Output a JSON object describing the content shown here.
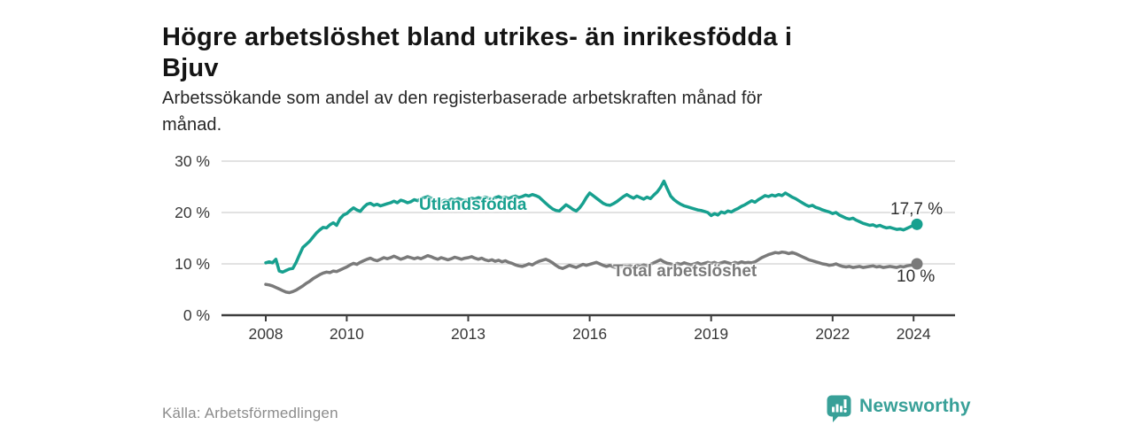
{
  "header": {
    "title_line1": "Högre arbetslöshet bland utrikes- än inrikesfödda i",
    "title_line2": "Bjuv",
    "subtitle_line1": "Arbetssökande som andel av den registerbaserade arbetskraften månad för",
    "subtitle_line2": "månad."
  },
  "footer": {
    "source": "Källa: Arbetsförmedlingen",
    "logo_text": "Newsworthy",
    "logo_icon": "bar-chart-speech-bubble-icon"
  },
  "colors": {
    "foreign_born_line": "#17a08f",
    "total_line": "#7a7a7a",
    "grid": "#d9d9d9",
    "axis": "#3d3d3d",
    "tick_text": "#383838",
    "annotation_text": "#2e2e2e",
    "source_text": "#8c8c8c",
    "logo_teal": "#38a098"
  },
  "chart_data": {
    "type": "line",
    "title": "Högre arbetslöshet bland utrikes- än inrikesfödda i Bjuv",
    "subtitle": "Arbetssökande som andel av den registerbaserade arbetskraften månad för månad.",
    "x_unit": "month",
    "x_start_year": 2008,
    "x_end": "2024-02",
    "x_ticks": [
      2008,
      2010,
      2013,
      2016,
      2019,
      2022,
      2024
    ],
    "x_tick_labels": [
      "2008",
      "2010",
      "2013",
      "2016",
      "2019",
      "2022",
      "2024"
    ],
    "y_ticks": [
      0,
      10,
      20,
      30
    ],
    "y_tick_labels": [
      "0 %",
      "10 %",
      "20 %",
      "30 %"
    ],
    "ylim": [
      0,
      30
    ],
    "grid": "horizontal",
    "legend_position": "inline-labels",
    "series": [
      {
        "name": "Utlandsfödda",
        "color": "#17a08f",
        "end_label": "17,7 %",
        "end_value": 17.7,
        "values": [
          10.2,
          10.4,
          10.2,
          10.9,
          8.6,
          8.4,
          8.7,
          9.0,
          9.1,
          10.3,
          11.8,
          13.2,
          13.8,
          14.4,
          15.2,
          16.0,
          16.6,
          17.1,
          17.0,
          17.6,
          18.0,
          17.5,
          18.8,
          19.5,
          19.8,
          20.4,
          20.9,
          20.5,
          20.2,
          21.0,
          21.6,
          21.8,
          21.4,
          21.6,
          21.3,
          21.5,
          21.7,
          21.9,
          22.2,
          21.9,
          22.4,
          22.2,
          21.9,
          22.1,
          22.5,
          22.3,
          22.7,
          22.9,
          23.1,
          22.8,
          22.4,
          21.9,
          22.1,
          22.4,
          22.2,
          22.6,
          22.4,
          22.7,
          22.5,
          22.3,
          22.5,
          22.8,
          22.6,
          22.9,
          22.7,
          23.0,
          22.8,
          22.6,
          22.9,
          23.1,
          22.8,
          23.0,
          22.7,
          23.0,
          23.2,
          22.9,
          23.1,
          23.4,
          23.2,
          23.5,
          23.3,
          23.0,
          22.4,
          21.8,
          21.2,
          20.7,
          20.4,
          20.3,
          20.9,
          21.5,
          21.1,
          20.6,
          20.3,
          20.9,
          21.8,
          22.9,
          23.8,
          23.3,
          22.8,
          22.3,
          21.8,
          21.5,
          21.4,
          21.7,
          22.1,
          22.6,
          23.1,
          23.5,
          23.1,
          22.8,
          23.2,
          22.9,
          22.6,
          23.0,
          22.7,
          23.4,
          24.0,
          24.9,
          26.1,
          24.6,
          23.2,
          22.5,
          22.0,
          21.6,
          21.3,
          21.1,
          20.9,
          20.7,
          20.5,
          20.4,
          20.2,
          20.0,
          19.4,
          19.8,
          19.5,
          20.1,
          19.9,
          20.3,
          20.1,
          20.5,
          20.8,
          21.2,
          21.5,
          21.9,
          22.3,
          22.0,
          22.5,
          22.9,
          23.3,
          23.1,
          23.4,
          23.2,
          23.5,
          23.3,
          23.8,
          23.4,
          23.0,
          22.7,
          22.3,
          21.9,
          21.5,
          21.2,
          21.4,
          21.0,
          20.8,
          20.5,
          20.3,
          20.1,
          19.8,
          20.0,
          19.5,
          19.2,
          18.9,
          18.7,
          18.9,
          18.5,
          18.2,
          17.9,
          17.7,
          17.5,
          17.6,
          17.3,
          17.5,
          17.2,
          17.0,
          17.1,
          16.9,
          16.7,
          16.8,
          16.6,
          16.9,
          17.2,
          17.5,
          17.7
        ]
      },
      {
        "name": "Total arbetslöshet",
        "color": "#7a7a7a",
        "end_label": "10 %",
        "end_value": 10.0,
        "values": [
          6.0,
          5.9,
          5.7,
          5.4,
          5.1,
          4.8,
          4.5,
          4.4,
          4.6,
          4.9,
          5.3,
          5.7,
          6.2,
          6.6,
          7.1,
          7.5,
          7.9,
          8.2,
          8.4,
          8.3,
          8.6,
          8.5,
          8.8,
          9.1,
          9.4,
          9.8,
          10.1,
          9.9,
          10.3,
          10.6,
          10.9,
          11.1,
          10.8,
          10.6,
          10.9,
          11.2,
          11.0,
          11.2,
          11.5,
          11.2,
          10.9,
          11.1,
          11.4,
          11.2,
          11.0,
          11.2,
          11.0,
          11.3,
          11.6,
          11.4,
          11.1,
          10.9,
          11.2,
          11.0,
          10.8,
          11.0,
          11.3,
          11.1,
          10.9,
          11.1,
          11.2,
          11.4,
          11.1,
          10.9,
          11.1,
          10.8,
          10.6,
          10.8,
          10.5,
          10.7,
          10.4,
          10.6,
          10.3,
          10.1,
          9.8,
          9.6,
          9.5,
          9.7,
          10.0,
          9.8,
          10.2,
          10.5,
          10.7,
          10.9,
          10.6,
          10.2,
          9.7,
          9.3,
          9.1,
          9.4,
          9.7,
          9.5,
          9.3,
          9.6,
          9.9,
          9.7,
          9.9,
          10.1,
          10.3,
          10.0,
          9.7,
          9.5,
          9.7,
          9.4,
          9.2,
          9.4,
          9.6,
          9.5,
          9.6,
          9.4,
          9.7,
          9.5,
          9.8,
          9.6,
          9.9,
          10.2,
          10.5,
          10.8,
          10.4,
          10.1,
          10.0,
          9.8,
          10.1,
          9.9,
          10.2,
          10.0,
          9.8,
          10.0,
          10.2,
          9.9,
          10.1,
          10.3,
          10.1,
          10.3,
          10.0,
          10.2,
          10.4,
          10.2,
          10.0,
          10.3,
          10.1,
          10.4,
          10.2,
          10.3,
          10.2,
          10.4,
          10.8,
          11.2,
          11.5,
          11.8,
          12.0,
          12.2,
          12.1,
          12.3,
          12.2,
          12.0,
          12.2,
          12.0,
          11.7,
          11.4,
          11.1,
          10.8,
          10.6,
          10.4,
          10.2,
          10.0,
          9.9,
          9.7,
          9.8,
          10.0,
          9.7,
          9.5,
          9.4,
          9.5,
          9.3,
          9.4,
          9.5,
          9.3,
          9.4,
          9.5,
          9.6,
          9.4,
          9.5,
          9.3,
          9.4,
          9.5,
          9.4,
          9.3,
          9.5,
          9.4,
          9.6,
          9.7,
          9.8,
          10.0
        ]
      }
    ]
  }
}
